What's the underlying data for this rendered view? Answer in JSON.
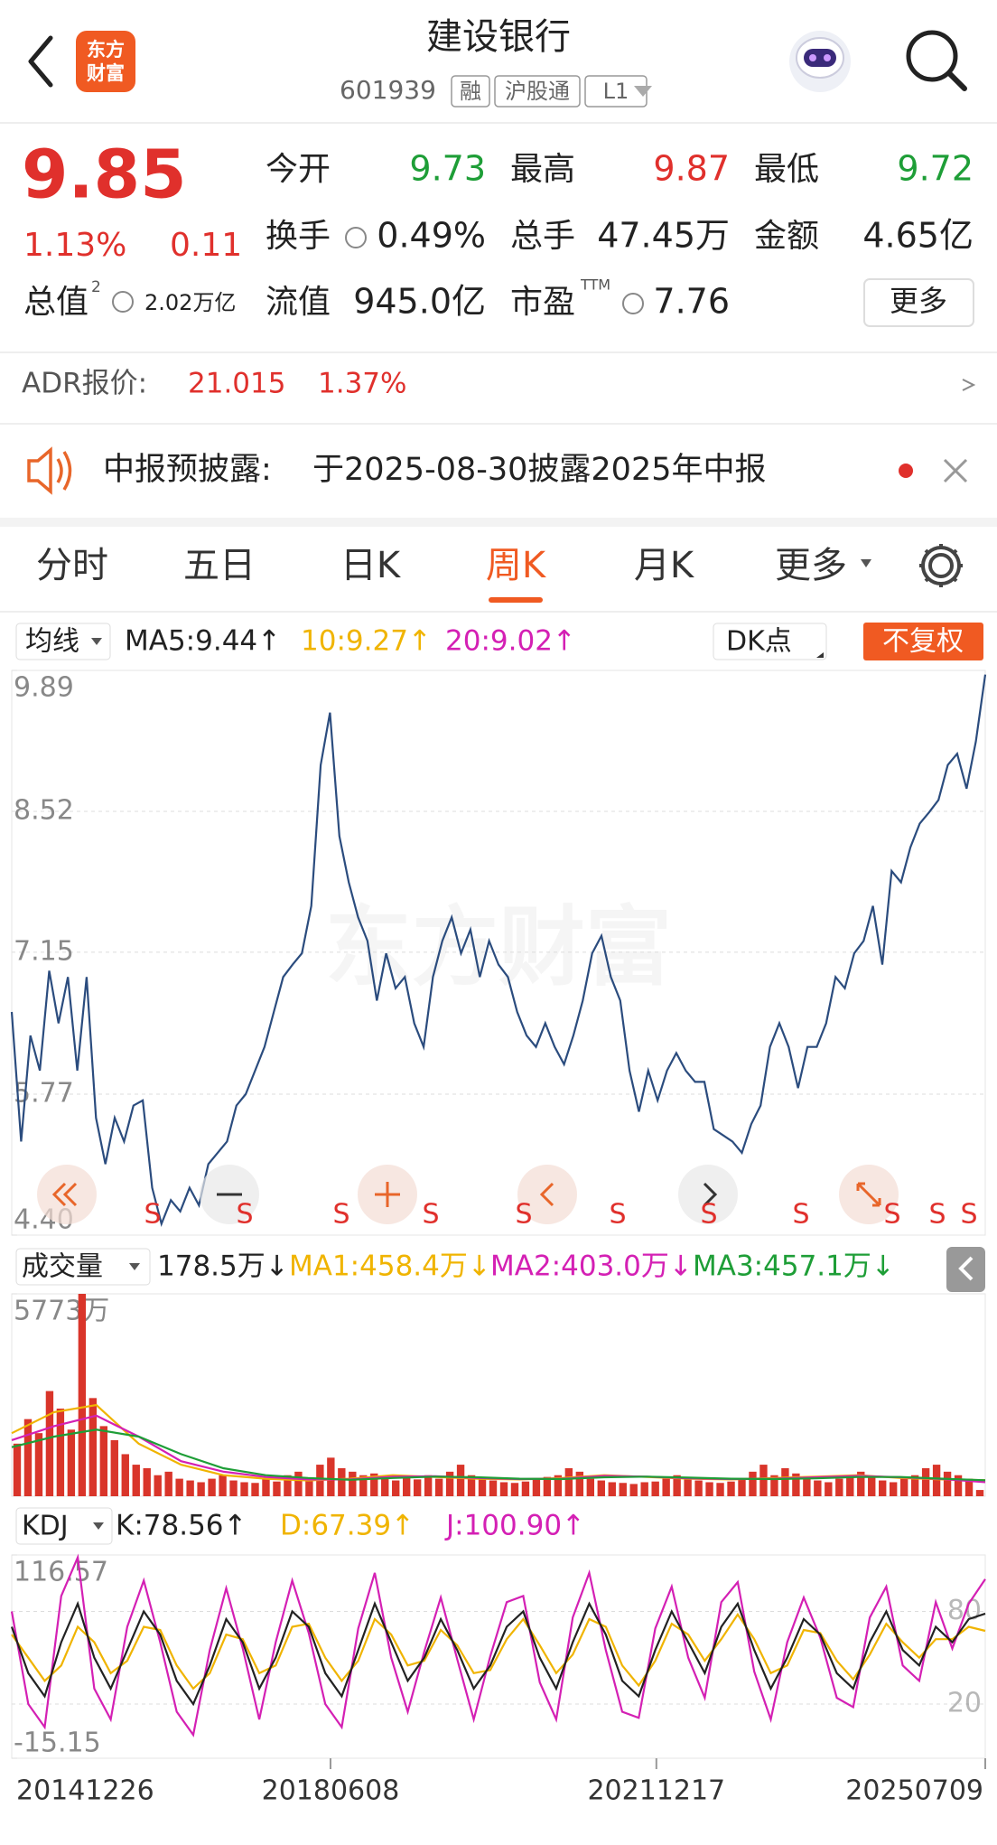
{
  "header": {
    "title": "建设银行",
    "code": "601939",
    "badges": [
      "融",
      "沪股通",
      "L1"
    ],
    "logo": [
      "东方",
      "财富"
    ]
  },
  "quote": {
    "price": "9.85",
    "change_pct": "1.13%",
    "change": "0.11",
    "cap_label": "总值",
    "cap_sup": "2",
    "cap_value": "2.02万亿",
    "fields": [
      {
        "label": "今开",
        "value": "9.73"
      },
      {
        "label": "最高",
        "value": "9.87"
      },
      {
        "label": "最低",
        "value": "9.72"
      },
      {
        "label": "换手",
        "value": "0.49%"
      },
      {
        "label": "总手",
        "value": "47.45万"
      },
      {
        "label": "金额",
        "value": "4.65亿"
      },
      {
        "label": "流值",
        "value": "945.0亿"
      },
      {
        "label": "市盈",
        "sup": "TTM",
        "value": "7.76"
      }
    ],
    "more": "更多"
  },
  "adr": {
    "label": "ADR报价:",
    "price": "21.015",
    "pct": "1.37%"
  },
  "notice": {
    "title": "中报预披露:",
    "text": "于2025-08-30披露2025年中报"
  },
  "tabs": [
    "分时",
    "五日",
    "日K",
    "周K",
    "月K",
    "更多"
  ],
  "main_legend": {
    "selector": "均线",
    "items": [
      {
        "text": "MA5:9.44↑",
        "color": "#222222"
      },
      {
        "text": "10:9.27↑",
        "color": "#f0b400"
      },
      {
        "text": "20:9.02↑",
        "color": "#d420b4"
      }
    ],
    "dk": "DK点",
    "adjust": "不复权"
  },
  "watermark": "东方财富",
  "signals": [
    "S",
    "S",
    "S",
    "S",
    "S",
    "S",
    "S",
    "S",
    "S",
    "S",
    "S"
  ],
  "volume_legend": {
    "selector": "成交量",
    "items": [
      {
        "text": "178.5万↓",
        "color": "#222222"
      },
      {
        "text": "MA1:458.4万↓",
        "color": "#f0b400"
      },
      {
        "text": "MA2:403.0万↓",
        "color": "#d420b4"
      },
      {
        "text": "MA3:457.1万↓",
        "color": "#1e9e37"
      }
    ]
  },
  "kdj_legend": {
    "selector": "KDJ",
    "items": [
      {
        "text": "K:78.56↑",
        "color": "#222222"
      },
      {
        "text": "D:67.39↑",
        "color": "#f0b400"
      },
      {
        "text": "J:100.90↑",
        "color": "#d420b4"
      }
    ]
  },
  "dates": [
    "20141226",
    "20180608",
    "20211217",
    "20250709"
  ],
  "chart_data": [
    {
      "type": "line",
      "color": "#2b4c7e",
      "ylim": [
        4.4,
        9.89
      ],
      "yticks": [
        {
          "value": 4.4,
          "label": "4.40"
        },
        5.77,
        7.15,
        8.52,
        9.89
      ],
      "grid": true,
      "values": [
        6.57,
        5.31,
        6.34,
        6.0,
        6.97,
        6.46,
        6.91,
        6.0,
        6.91,
        5.54,
        5.09,
        5.54,
        5.31,
        5.66,
        5.71,
        4.86,
        4.51,
        4.74,
        4.63,
        4.86,
        4.69,
        5.09,
        5.2,
        5.31,
        5.66,
        5.77,
        6.0,
        6.23,
        6.57,
        6.91,
        7.03,
        7.14,
        7.6,
        8.97,
        9.48,
        8.28,
        7.83,
        7.49,
        7.26,
        6.68,
        7.14,
        6.8,
        6.91,
        6.46,
        6.23,
        6.91,
        7.26,
        7.49,
        7.14,
        7.37,
        6.91,
        7.26,
        7.03,
        6.91,
        6.57,
        6.34,
        6.23,
        6.46,
        6.23,
        6.06,
        6.34,
        6.68,
        7.14,
        7.31,
        6.91,
        6.68,
        6.0,
        5.6,
        6.0,
        5.71,
        6.0,
        6.17,
        6.0,
        5.89,
        5.89,
        5.43,
        5.37,
        5.31,
        5.2,
        5.48,
        5.66,
        6.23,
        6.46,
        6.23,
        5.83,
        6.23,
        6.23,
        6.46,
        6.91,
        6.8,
        7.14,
        7.26,
        7.6,
        7.03,
        7.94,
        7.83,
        8.17,
        8.4,
        8.51,
        8.63,
        8.97,
        9.08,
        8.74,
        9.2,
        9.85
      ]
    },
    {
      "type": "bar",
      "color": "#d9352a",
      "ylim": [
        0,
        5773
      ],
      "yticks": [
        {
          "value": 5773,
          "label": "5773万"
        }
      ],
      "values": [
        1500,
        2200,
        1800,
        3000,
        2500,
        1900,
        5773,
        2800,
        2000,
        1600,
        1200,
        900,
        800,
        600,
        700,
        500,
        450,
        400,
        500,
        600,
        450,
        400,
        380,
        500,
        420,
        600,
        700,
        500,
        900,
        1100,
        800,
        700,
        600,
        650,
        500,
        450,
        550,
        480,
        600,
        500,
        700,
        900,
        600,
        500,
        450,
        400,
        380,
        420,
        500,
        550,
        600,
        800,
        700,
        500,
        450,
        400,
        380,
        350,
        400,
        420,
        500,
        600,
        550,
        450,
        400,
        380,
        420,
        500,
        700,
        900,
        600,
        800,
        650,
        500,
        450,
        400,
        500,
        600,
        700,
        550,
        450,
        400,
        500,
        600,
        800,
        900,
        700,
        600,
        500,
        178.5
      ],
      "series": [
        {
          "color": "#f0b400",
          "values": [
            1800,
            2400,
            2600,
            1500,
            900,
            600,
            500,
            450,
            500,
            600,
            550,
            500,
            480,
            520,
            600,
            550,
            500,
            480,
            520,
            560,
            600,
            520,
            480,
            458.4
          ]
        },
        {
          "color": "#d420b4",
          "values": [
            1600,
            2000,
            2300,
            1700,
            1000,
            700,
            550,
            480,
            480,
            560,
            570,
            520,
            490,
            500,
            580,
            560,
            510,
            490,
            500,
            540,
            580,
            540,
            490,
            403
          ]
        },
        {
          "color": "#1e9e37",
          "values": [
            1400,
            1700,
            1900,
            1700,
            1200,
            800,
            600,
            520,
            470,
            520,
            560,
            540,
            500,
            490,
            540,
            560,
            530,
            500,
            490,
            510,
            550,
            550,
            500,
            457.1
          ]
        }
      ]
    },
    {
      "type": "line",
      "ylim": [
        -15.15,
        116.57
      ],
      "yticks": [
        -15.15,
        20,
        80,
        116.57
      ],
      "series": [
        {
          "color": "#d420b4",
          "values": [
            80,
            20,
            5,
            90,
            115,
            30,
            10,
            70,
            100,
            60,
            15,
            0,
            55,
            95,
            56,
            10,
            60,
            100,
            66,
            20,
            5,
            69,
            105,
            50,
            15,
            54,
            89,
            49,
            10,
            51,
            86,
            90,
            34,
            10,
            76,
            105,
            55,
            15,
            11,
            69,
            96,
            50,
            24,
            86,
            99,
            41,
            10,
            60,
            89,
            63,
            24,
            18,
            76,
            96,
            45,
            35,
            86,
            56,
            85,
            100.9
          ]
        },
        {
          "color": "#f0b400",
          "values": [
            65,
            50,
            35,
            45,
            70,
            60,
            40,
            48,
            70,
            68,
            45,
            30,
            40,
            65,
            62,
            40,
            45,
            70,
            72,
            50,
            35,
            48,
            75,
            65,
            45,
            48,
            68,
            58,
            40,
            42,
            62,
            75,
            58,
            40,
            52,
            75,
            70,
            45,
            32,
            48,
            72,
            65,
            48,
            62,
            78,
            62,
            40,
            45,
            68,
            66,
            48,
            36,
            52,
            72,
            60,
            50,
            62,
            62,
            70,
            67.39
          ]
        },
        {
          "color": "#222222",
          "values": [
            70,
            40,
            25,
            60,
            85,
            50,
            30,
            55,
            80,
            65,
            35,
            20,
            45,
            75,
            60,
            30,
            50,
            80,
            70,
            40,
            25,
            55,
            85,
            60,
            35,
            50,
            75,
            55,
            30,
            45,
            70,
            80,
            50,
            30,
            60,
            85,
            65,
            35,
            25,
            55,
            80,
            60,
            40,
            70,
            85,
            55,
            30,
            50,
            75,
            65,
            40,
            30,
            60,
            80,
            55,
            45,
            70,
            60,
            75,
            78.56
          ]
        }
      ]
    }
  ]
}
